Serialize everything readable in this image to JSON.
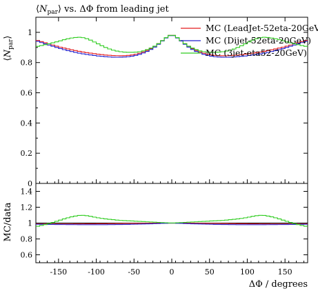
{
  "chart_data": {
    "type": "line",
    "title_parts": {
      "open": "⟨",
      "symbol": "N",
      "subscript": "par",
      "close": "⟩",
      "rest": " vs. ΔΦ from leading jet"
    },
    "ylabel_parts": {
      "open": "⟨",
      "symbol": "N",
      "subscript": "par",
      "close": "⟩"
    },
    "ratio_ylabel": "MC/data",
    "xlabel": "ΔΦ / degrees",
    "xlim": [
      -180,
      180
    ],
    "ylim": [
      0,
      1.1
    ],
    "ratio_ylim": [
      0.5,
      1.5
    ],
    "x_ticks": [
      {
        "value": -150,
        "label": "-150"
      },
      {
        "value": -100,
        "label": "-100"
      },
      {
        "value": -50,
        "label": "-50"
      },
      {
        "value": 0,
        "label": "0"
      },
      {
        "value": 50,
        "label": "50"
      },
      {
        "value": 100,
        "label": "100"
      },
      {
        "value": 150,
        "label": "150"
      }
    ],
    "y_ticks": [
      {
        "value": 0,
        "label": "0"
      },
      {
        "value": 0.2,
        "label": "0.2"
      },
      {
        "value": 0.4,
        "label": "0.4"
      },
      {
        "value": 0.6,
        "label": "0.6"
      },
      {
        "value": 0.8,
        "label": "0.8"
      },
      {
        "value": 1,
        "label": "1"
      }
    ],
    "ratio_y_ticks": [
      {
        "value": 0.6,
        "label": "0.6"
      },
      {
        "value": 0.8,
        "label": "0.8"
      },
      {
        "value": 1,
        "label": "1"
      },
      {
        "value": 1.2,
        "label": "1.2"
      },
      {
        "value": 1.4,
        "label": "1.4"
      }
    ],
    "series": [
      {
        "name": "MC (LeadJet-52eta-20GeV)",
        "color": "#e31a1c",
        "x": [
          -180,
          -170,
          -160,
          -150,
          -140,
          -130,
          -120,
          -110,
          -100,
          -90,
          -80,
          -70,
          -60,
          -50,
          -40,
          -30,
          -20,
          -15,
          -10,
          -5,
          0,
          5,
          10,
          15,
          20,
          30,
          40,
          50,
          60,
          70,
          80,
          90,
          100,
          110,
          120,
          130,
          140,
          150,
          160,
          170,
          180
        ],
        "y": [
          0.95,
          0.935,
          0.92,
          0.905,
          0.893,
          0.882,
          0.872,
          0.864,
          0.857,
          0.851,
          0.847,
          0.845,
          0.846,
          0.852,
          0.865,
          0.885,
          0.915,
          0.935,
          0.955,
          0.975,
          0.985,
          0.975,
          0.955,
          0.935,
          0.915,
          0.885,
          0.865,
          0.852,
          0.846,
          0.845,
          0.847,
          0.851,
          0.857,
          0.864,
          0.872,
          0.882,
          0.893,
          0.905,
          0.92,
          0.935,
          0.95
        ]
      },
      {
        "name": "MC (Dijet-52eta-20GeV)",
        "color": "#1f1fcf",
        "x": [
          -180,
          -170,
          -160,
          -150,
          -140,
          -130,
          -120,
          -110,
          -100,
          -90,
          -80,
          -70,
          -60,
          -50,
          -40,
          -30,
          -20,
          -15,
          -10,
          -5,
          0,
          5,
          10,
          15,
          20,
          30,
          40,
          50,
          60,
          70,
          80,
          90,
          100,
          110,
          120,
          130,
          140,
          150,
          160,
          170,
          180
        ],
        "y": [
          0.945,
          0.928,
          0.912,
          0.896,
          0.882,
          0.87,
          0.86,
          0.852,
          0.845,
          0.84,
          0.836,
          0.835,
          0.837,
          0.844,
          0.858,
          0.879,
          0.91,
          0.932,
          0.953,
          0.973,
          0.983,
          0.973,
          0.953,
          0.932,
          0.91,
          0.879,
          0.858,
          0.844,
          0.837,
          0.835,
          0.836,
          0.84,
          0.845,
          0.852,
          0.86,
          0.87,
          0.882,
          0.896,
          0.912,
          0.928,
          0.945
        ]
      },
      {
        "name": "MC (3jet-eta52-20GeV)",
        "color": "#2ecc1f",
        "x": [
          -180,
          -170,
          -160,
          -150,
          -140,
          -130,
          -120,
          -110,
          -100,
          -90,
          -80,
          -70,
          -60,
          -50,
          -40,
          -30,
          -20,
          -15,
          -10,
          -5,
          0,
          5,
          10,
          15,
          20,
          30,
          40,
          50,
          60,
          70,
          80,
          90,
          100,
          110,
          120,
          130,
          140,
          150,
          160,
          170,
          180
        ],
        "y": [
          0.905,
          0.915,
          0.928,
          0.94,
          0.955,
          0.965,
          0.968,
          0.955,
          0.93,
          0.905,
          0.885,
          0.873,
          0.868,
          0.868,
          0.873,
          0.89,
          0.915,
          0.935,
          0.955,
          0.975,
          0.985,
          0.975,
          0.955,
          0.935,
          0.915,
          0.89,
          0.873,
          0.868,
          0.868,
          0.873,
          0.885,
          0.905,
          0.93,
          0.955,
          0.968,
          0.965,
          0.955,
          0.94,
          0.928,
          0.915,
          0.905
        ]
      }
    ],
    "ratio_series": [
      {
        "color": "#e31a1c",
        "x": [
          -180,
          -150,
          -120,
          -90,
          -60,
          -30,
          0,
          30,
          60,
          90,
          120,
          150,
          180
        ],
        "y": [
          0.99,
          0.988,
          0.99,
          0.992,
          0.995,
          0.998,
          1.0,
          0.998,
          0.995,
          0.992,
          0.99,
          0.988,
          0.99
        ]
      },
      {
        "color": "#1f1fcf",
        "x": [
          -180,
          -150,
          -120,
          -90,
          -60,
          -30,
          0,
          30,
          60,
          90,
          120,
          150,
          180
        ],
        "y": [
          0.985,
          0.982,
          0.98,
          0.98,
          0.983,
          0.99,
          1.0,
          0.99,
          0.983,
          0.98,
          0.98,
          0.982,
          0.985
        ]
      },
      {
        "color": "#2ecc1f",
        "x": [
          -180,
          -170,
          -160,
          -150,
          -140,
          -130,
          -120,
          -110,
          -100,
          -90,
          -80,
          -70,
          -60,
          -50,
          -40,
          -30,
          -20,
          -10,
          0,
          10,
          20,
          30,
          40,
          50,
          60,
          70,
          80,
          90,
          100,
          110,
          120,
          130,
          140,
          150,
          160,
          170,
          180
        ],
        "y": [
          0.955,
          0.975,
          1.0,
          1.03,
          1.06,
          1.085,
          1.1,
          1.09,
          1.07,
          1.055,
          1.045,
          1.035,
          1.03,
          1.025,
          1.02,
          1.015,
          1.01,
          1.005,
          1.0,
          1.005,
          1.01,
          1.015,
          1.02,
          1.025,
          1.03,
          1.035,
          1.045,
          1.055,
          1.07,
          1.09,
          1.1,
          1.085,
          1.06,
          1.03,
          1.0,
          0.975,
          0.955
        ]
      }
    ]
  }
}
